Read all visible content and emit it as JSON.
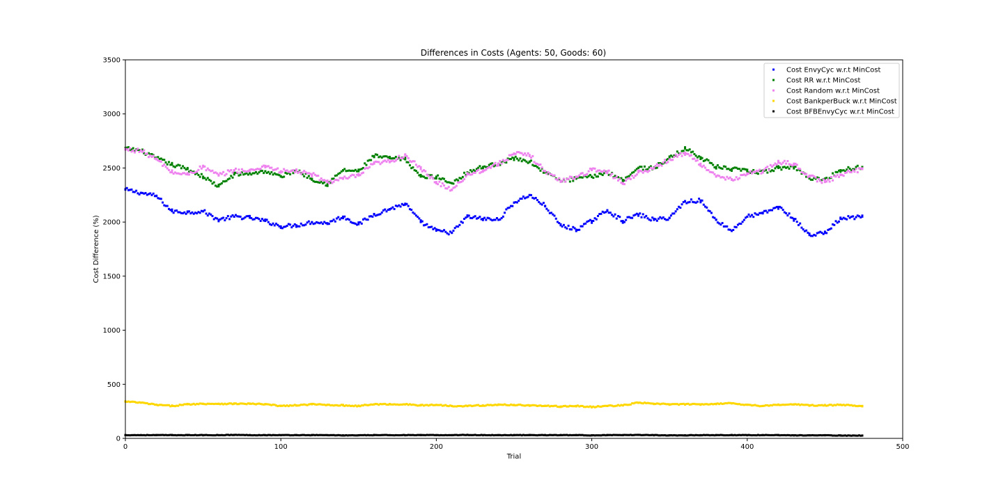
{
  "chart_data": {
    "type": "scatter",
    "title": "Differences in Costs (Agents: 50, Goods: 60)",
    "xlabel": "Trial",
    "ylabel": "Cost Difference (%)",
    "xlim": [
      0,
      500
    ],
    "ylim": [
      0,
      3500
    ],
    "xticks": [
      "0",
      "100",
      "200",
      "300",
      "400",
      "500"
    ],
    "yticks": [
      "0",
      "500",
      "1000",
      "1500",
      "2000",
      "2500",
      "3000",
      "3500"
    ],
    "grid": false,
    "legend_position": "top-right",
    "x_range": [
      0,
      474
    ],
    "series": [
      {
        "name": "Cost EnvyCyc w.r.t MinCost",
        "color": "#0000ff",
        "x": [
          0,
          10,
          20,
          30,
          40,
          50,
          60,
          70,
          80,
          90,
          100,
          110,
          120,
          130,
          140,
          150,
          160,
          170,
          180,
          190,
          200,
          210,
          220,
          230,
          240,
          250,
          260,
          270,
          280,
          290,
          300,
          310,
          320,
          330,
          340,
          350,
          360,
          370,
          380,
          390,
          400,
          410,
          420,
          430,
          440,
          450,
          460,
          474
        ],
        "values": [
          2300,
          2270,
          2240,
          2100,
          2090,
          2100,
          2020,
          2050,
          2040,
          2010,
          1960,
          1970,
          2000,
          1990,
          2050,
          1980,
          2070,
          2120,
          2170,
          2000,
          1920,
          1900,
          2050,
          2030,
          2020,
          2180,
          2250,
          2150,
          1970,
          1930,
          2010,
          2110,
          2010,
          2070,
          2020,
          2040,
          2190,
          2200,
          2020,
          1920,
          2050,
          2080,
          2140,
          2030,
          1880,
          1900,
          2030,
          2050
        ]
      },
      {
        "name": "Cost RR w.r.t MinCost",
        "color": "#008000",
        "x": [
          0,
          10,
          20,
          30,
          40,
          50,
          60,
          70,
          80,
          90,
          100,
          110,
          120,
          130,
          140,
          150,
          160,
          170,
          180,
          190,
          200,
          210,
          220,
          230,
          240,
          250,
          260,
          270,
          280,
          290,
          300,
          310,
          320,
          330,
          340,
          350,
          360,
          370,
          380,
          390,
          400,
          410,
          420,
          430,
          440,
          450,
          460,
          474
        ],
        "values": [
          2680,
          2660,
          2590,
          2530,
          2490,
          2420,
          2330,
          2440,
          2450,
          2470,
          2420,
          2480,
          2400,
          2350,
          2480,
          2470,
          2610,
          2590,
          2580,
          2420,
          2420,
          2360,
          2460,
          2510,
          2540,
          2590,
          2560,
          2460,
          2380,
          2400,
          2420,
          2460,
          2390,
          2500,
          2500,
          2590,
          2680,
          2600,
          2510,
          2490,
          2470,
          2460,
          2500,
          2510,
          2410,
          2390,
          2480,
          2510
        ]
      },
      {
        "name": "Cost Random w.r.t MinCost",
        "color": "#ee82ee",
        "x": [
          0,
          10,
          20,
          30,
          40,
          50,
          60,
          70,
          80,
          90,
          100,
          110,
          120,
          130,
          140,
          150,
          160,
          170,
          180,
          190,
          200,
          210,
          220,
          230,
          240,
          250,
          260,
          270,
          280,
          290,
          300,
          310,
          320,
          330,
          340,
          350,
          360,
          370,
          380,
          390,
          400,
          410,
          420,
          430,
          440,
          450,
          460,
          474
        ],
        "values": [
          2670,
          2660,
          2580,
          2460,
          2440,
          2510,
          2430,
          2480,
          2470,
          2520,
          2470,
          2470,
          2440,
          2370,
          2400,
          2430,
          2540,
          2560,
          2620,
          2490,
          2370,
          2300,
          2440,
          2480,
          2540,
          2630,
          2620,
          2470,
          2380,
          2420,
          2480,
          2470,
          2360,
          2460,
          2500,
          2580,
          2640,
          2540,
          2420,
          2390,
          2450,
          2470,
          2550,
          2540,
          2420,
          2370,
          2440,
          2490
        ]
      },
      {
        "name": "Cost BankperBuck w.r.t MinCost",
        "color": "#ffd700",
        "x": [
          0,
          10,
          20,
          30,
          40,
          50,
          60,
          70,
          80,
          90,
          100,
          110,
          120,
          130,
          140,
          150,
          160,
          170,
          180,
          190,
          200,
          210,
          220,
          230,
          240,
          250,
          260,
          270,
          280,
          290,
          300,
          310,
          320,
          330,
          340,
          350,
          360,
          370,
          380,
          390,
          400,
          410,
          420,
          430,
          440,
          450,
          460,
          474
        ],
        "values": [
          340,
          330,
          310,
          300,
          315,
          320,
          320,
          320,
          320,
          315,
          300,
          305,
          315,
          310,
          305,
          300,
          315,
          315,
          315,
          305,
          310,
          300,
          300,
          305,
          310,
          310,
          305,
          300,
          295,
          300,
          290,
          300,
          305,
          330,
          320,
          315,
          315,
          315,
          320,
          325,
          310,
          300,
          310,
          315,
          305,
          305,
          310,
          300
        ]
      },
      {
        "name": "Cost BFBEnvyCyc w.r.t MinCost",
        "color": "#000000",
        "x": [
          0,
          10,
          20,
          30,
          40,
          50,
          60,
          70,
          80,
          90,
          100,
          110,
          120,
          130,
          140,
          150,
          160,
          170,
          180,
          190,
          200,
          210,
          220,
          230,
          240,
          250,
          260,
          270,
          280,
          290,
          300,
          310,
          320,
          330,
          340,
          350,
          360,
          370,
          380,
          390,
          400,
          410,
          420,
          430,
          440,
          450,
          460,
          474
        ],
        "values": [
          30,
          30,
          30,
          30,
          30,
          30,
          30,
          32,
          30,
          30,
          30,
          30,
          30,
          30,
          28,
          28,
          30,
          30,
          30,
          30,
          30,
          30,
          32,
          30,
          30,
          30,
          30,
          30,
          30,
          30,
          28,
          30,
          30,
          32,
          30,
          28,
          28,
          30,
          30,
          30,
          30,
          30,
          30,
          28,
          28,
          28,
          26,
          26
        ]
      }
    ]
  }
}
